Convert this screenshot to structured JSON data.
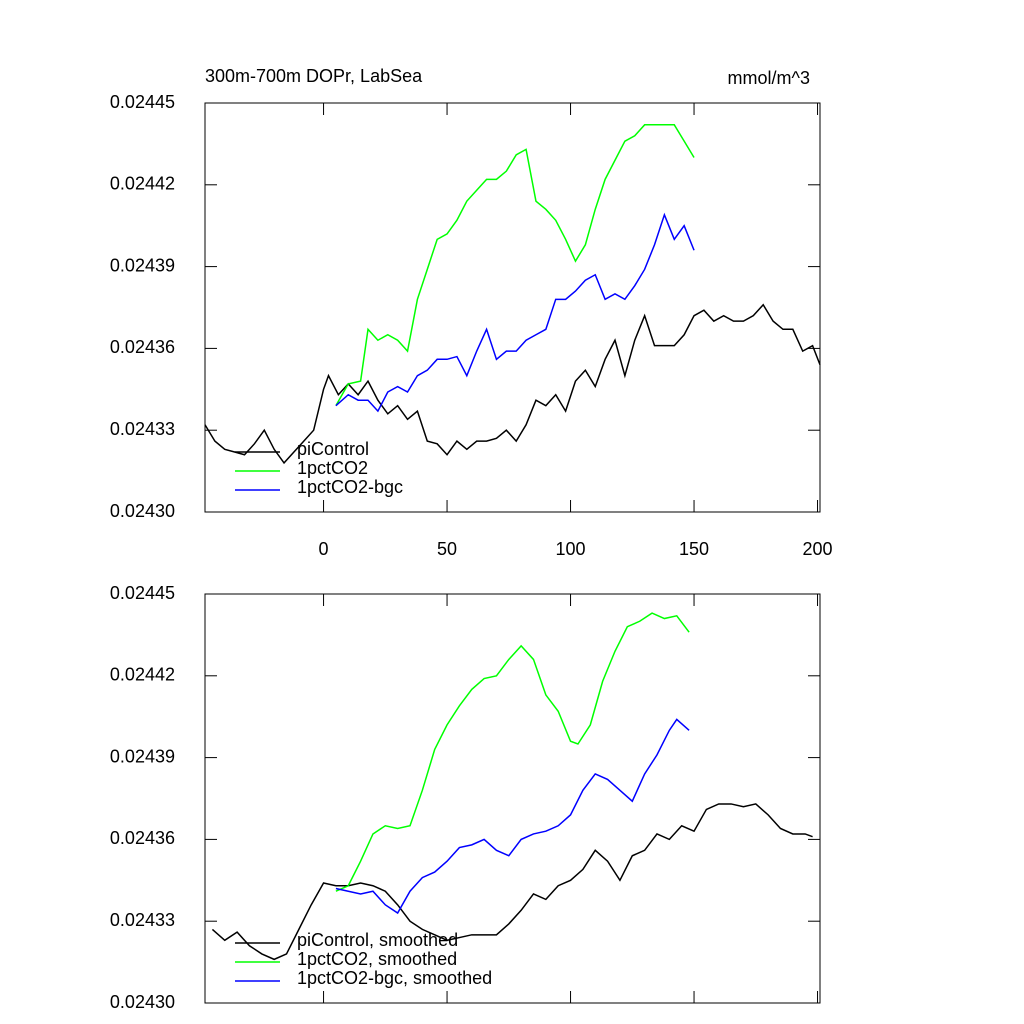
{
  "chart_data": [
    {
      "type": "line",
      "title": "300m-700m DOPr, LabSea",
      "units": "mmol/m^3",
      "xlim": [
        -48,
        201
      ],
      "xticks": [
        0,
        50,
        100,
        150,
        200
      ],
      "xtick_labels": true,
      "ylim": [
        0.0243,
        0.02445
      ],
      "yticks": [
        {
          "value": 0.0243,
          "label": "0.02430"
        },
        0.02433,
        0.02436,
        0.02439,
        0.02442,
        0.02445
      ],
      "legend": "lower left",
      "series": [
        {
          "name": "piControl",
          "color": "#000000",
          "x": [
            -48,
            -44,
            -40,
            -36,
            -32,
            -28,
            -24,
            -20,
            -16,
            -12,
            -8,
            -4,
            0,
            2,
            6,
            10,
            14,
            18,
            22,
            26,
            30,
            34,
            38,
            42,
            46,
            50,
            54,
            58,
            62,
            66,
            70,
            74,
            78,
            82,
            86,
            90,
            94,
            98,
            102,
            106,
            110,
            114,
            118,
            122,
            126,
            130,
            134,
            138,
            142,
            146,
            150,
            154,
            158,
            162,
            166,
            170,
            174,
            178,
            182,
            186,
            190,
            194,
            198,
            201
          ],
          "values": [
            0.024332,
            0.024326,
            0.024323,
            0.024322,
            0.024321,
            0.024325,
            0.02433,
            0.024323,
            0.024318,
            0.024322,
            0.024326,
            0.02433,
            0.024345,
            0.02435,
            0.024343,
            0.024347,
            0.024343,
            0.024348,
            0.024341,
            0.024336,
            0.024339,
            0.024334,
            0.024337,
            0.024326,
            0.024325,
            0.024321,
            0.024326,
            0.024323,
            0.024326,
            0.024326,
            0.024327,
            0.02433,
            0.024326,
            0.024332,
            0.024341,
            0.024339,
            0.024343,
            0.024337,
            0.024348,
            0.024352,
            0.024346,
            0.024356,
            0.024363,
            0.02435,
            0.024363,
            0.024372,
            0.024361,
            0.024361,
            0.024361,
            0.024365,
            0.024372,
            0.024374,
            0.02437,
            0.024372,
            0.02437,
            0.02437,
            0.024372,
            0.024376,
            0.02437,
            0.024367,
            0.024367,
            0.024359,
            0.024361,
            0.024354
          ]
        },
        {
          "name": "1pctCO2",
          "color": "#00ff00",
          "x": [
            5,
            10,
            15,
            18,
            22,
            26,
            30,
            34,
            38,
            42,
            46,
            50,
            54,
            58,
            62,
            66,
            70,
            74,
            78,
            82,
            86,
            90,
            94,
            98,
            102,
            106,
            110,
            114,
            118,
            122,
            126,
            130,
            134,
            138,
            142,
            146,
            150
          ],
          "values": [
            0.024339,
            0.024347,
            0.024348,
            0.024367,
            0.024363,
            0.024365,
            0.024363,
            0.024359,
            0.024378,
            0.024389,
            0.0244,
            0.024402,
            0.024407,
            0.024414,
            0.024418,
            0.024422,
            0.024422,
            0.024425,
            0.024431,
            0.024433,
            0.024414,
            0.024411,
            0.024407,
            0.0244,
            0.024392,
            0.024398,
            0.024411,
            0.024422,
            0.024429,
            0.024436,
            0.024438,
            0.024442,
            0.024442,
            0.024442,
            0.024442,
            0.024436,
            0.02443
          ]
        },
        {
          "name": "1pctCO2-bgc",
          "color": "#0000ff",
          "x": [
            5,
            10,
            14,
            18,
            22,
            26,
            30,
            34,
            38,
            42,
            46,
            50,
            54,
            58,
            62,
            66,
            70,
            74,
            78,
            82,
            86,
            90,
            94,
            98,
            102,
            106,
            110,
            114,
            118,
            122,
            126,
            130,
            134,
            138,
            142,
            146,
            150
          ],
          "values": [
            0.024339,
            0.024343,
            0.024341,
            0.024341,
            0.024337,
            0.024344,
            0.024346,
            0.024344,
            0.02435,
            0.024352,
            0.024356,
            0.024356,
            0.024357,
            0.02435,
            0.024359,
            0.024367,
            0.024356,
            0.024359,
            0.024359,
            0.024363,
            0.024365,
            0.024367,
            0.024378,
            0.024378,
            0.024381,
            0.024385,
            0.024387,
            0.024378,
            0.02438,
            0.024378,
            0.024383,
            0.024389,
            0.024398,
            0.024409,
            0.0244,
            0.024405,
            0.024396
          ]
        }
      ]
    },
    {
      "type": "line",
      "xlim": [
        -48,
        201
      ],
      "xticks": [
        0,
        50,
        100,
        150,
        200
      ],
      "xtick_labels": false,
      "ylim": [
        0.0243,
        0.02445
      ],
      "yticks": [
        {
          "value": 0.0243,
          "label": "0.02430"
        },
        0.02433,
        0.02436,
        0.02439,
        0.02442,
        0.02445
      ],
      "legend": "lower left",
      "series": [
        {
          "name": "piControl, smoothed",
          "color": "#000000",
          "x": [
            -45,
            -40,
            -35,
            -30,
            -25,
            -20,
            -15,
            -10,
            -5,
            0,
            5,
            10,
            15,
            20,
            25,
            30,
            35,
            40,
            45,
            50,
            55,
            60,
            65,
            70,
            75,
            80,
            85,
            90,
            95,
            100,
            105,
            110,
            115,
            120,
            125,
            130,
            135,
            140,
            145,
            150,
            155,
            160,
            165,
            170,
            175,
            180,
            185,
            190,
            195,
            198
          ],
          "values": [
            0.024327,
            0.024323,
            0.024326,
            0.024321,
            0.024318,
            0.024316,
            0.024318,
            0.024327,
            0.024336,
            0.024344,
            0.024343,
            0.024343,
            0.024344,
            0.024343,
            0.024341,
            0.024336,
            0.02433,
            0.024327,
            0.024325,
            0.024323,
            0.024324,
            0.024325,
            0.024325,
            0.024325,
            0.024329,
            0.024334,
            0.02434,
            0.024338,
            0.024343,
            0.024345,
            0.024349,
            0.024356,
            0.024352,
            0.024345,
            0.024354,
            0.024356,
            0.024362,
            0.02436,
            0.024365,
            0.024363,
            0.024371,
            0.024373,
            0.024373,
            0.024372,
            0.024373,
            0.024369,
            0.024364,
            0.024362,
            0.024362,
            0.024361
          ]
        },
        {
          "name": "1pctCO2, smoothed",
          "color": "#00ff00",
          "x": [
            5,
            10,
            15,
            20,
            25,
            30,
            35,
            40,
            45,
            50,
            55,
            60,
            65,
            70,
            75,
            80,
            85,
            90,
            95,
            100,
            103,
            108,
            113,
            118,
            123,
            128,
            133,
            138,
            143,
            148
          ],
          "values": [
            0.024341,
            0.024343,
            0.024352,
            0.024362,
            0.024365,
            0.024364,
            0.024365,
            0.024378,
            0.024393,
            0.024402,
            0.024409,
            0.024415,
            0.024419,
            0.02442,
            0.024426,
            0.024431,
            0.024426,
            0.024413,
            0.024407,
            0.024396,
            0.024395,
            0.024402,
            0.024418,
            0.024429,
            0.024438,
            0.02444,
            0.024443,
            0.024441,
            0.024442,
            0.024436
          ]
        },
        {
          "name": "1pctCO2-bgc, smoothed",
          "color": "#0000ff",
          "x": [
            5,
            10,
            15,
            20,
            25,
            30,
            35,
            40,
            45,
            50,
            55,
            60,
            65,
            70,
            75,
            80,
            85,
            90,
            95,
            100,
            105,
            110,
            115,
            120,
            125,
            130,
            135,
            140,
            143,
            148
          ],
          "values": [
            0.024342,
            0.024341,
            0.02434,
            0.024341,
            0.024336,
            0.024333,
            0.024341,
            0.024346,
            0.024348,
            0.024352,
            0.024357,
            0.024358,
            0.02436,
            0.024356,
            0.024354,
            0.02436,
            0.024362,
            0.024363,
            0.024365,
            0.024369,
            0.024378,
            0.024384,
            0.024382,
            0.024378,
            0.024374,
            0.024384,
            0.024391,
            0.0244,
            0.024404,
            0.0244
          ]
        }
      ]
    }
  ]
}
